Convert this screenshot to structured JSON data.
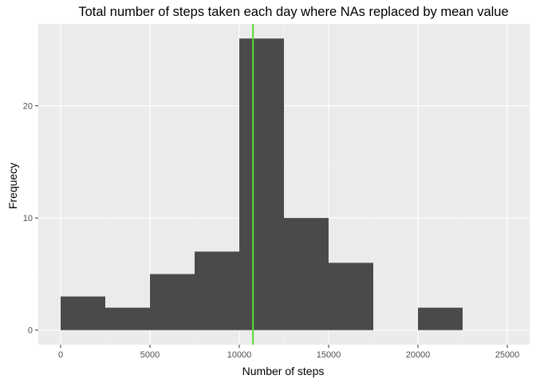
{
  "chart_data": {
    "type": "bar",
    "title": "Total number of steps taken each day where NAs replaced by mean value",
    "xlabel": "Number of steps",
    "ylabel": "Frequecy",
    "bins": [
      {
        "x0": 0,
        "x1": 2500,
        "count": 3
      },
      {
        "x0": 2500,
        "x1": 5000,
        "count": 2
      },
      {
        "x0": 5000,
        "x1": 7500,
        "count": 5
      },
      {
        "x0": 7500,
        "x1": 10000,
        "count": 7
      },
      {
        "x0": 10000,
        "x1": 12500,
        "count": 26
      },
      {
        "x0": 12500,
        "x1": 15000,
        "count": 10
      },
      {
        "x0": 15000,
        "x1": 17500,
        "count": 6
      },
      {
        "x0": 17500,
        "x1": 20000,
        "count": 0
      },
      {
        "x0": 20000,
        "x1": 22500,
        "count": 2
      },
      {
        "x0": 22500,
        "x1": 25000,
        "count": 0
      }
    ],
    "mean_line": 10766.19,
    "xticks": [
      0,
      5000,
      10000,
      15000,
      20000,
      25000
    ],
    "yticks": [
      0,
      10,
      20
    ],
    "xlim": [
      -1250,
      26250
    ],
    "ylim": [
      -1.3,
      27.3
    ],
    "grid": true,
    "colors": {
      "panel": "#ebebeb",
      "bar": "#4a4a4a",
      "mean_line": "#55dd33"
    }
  }
}
